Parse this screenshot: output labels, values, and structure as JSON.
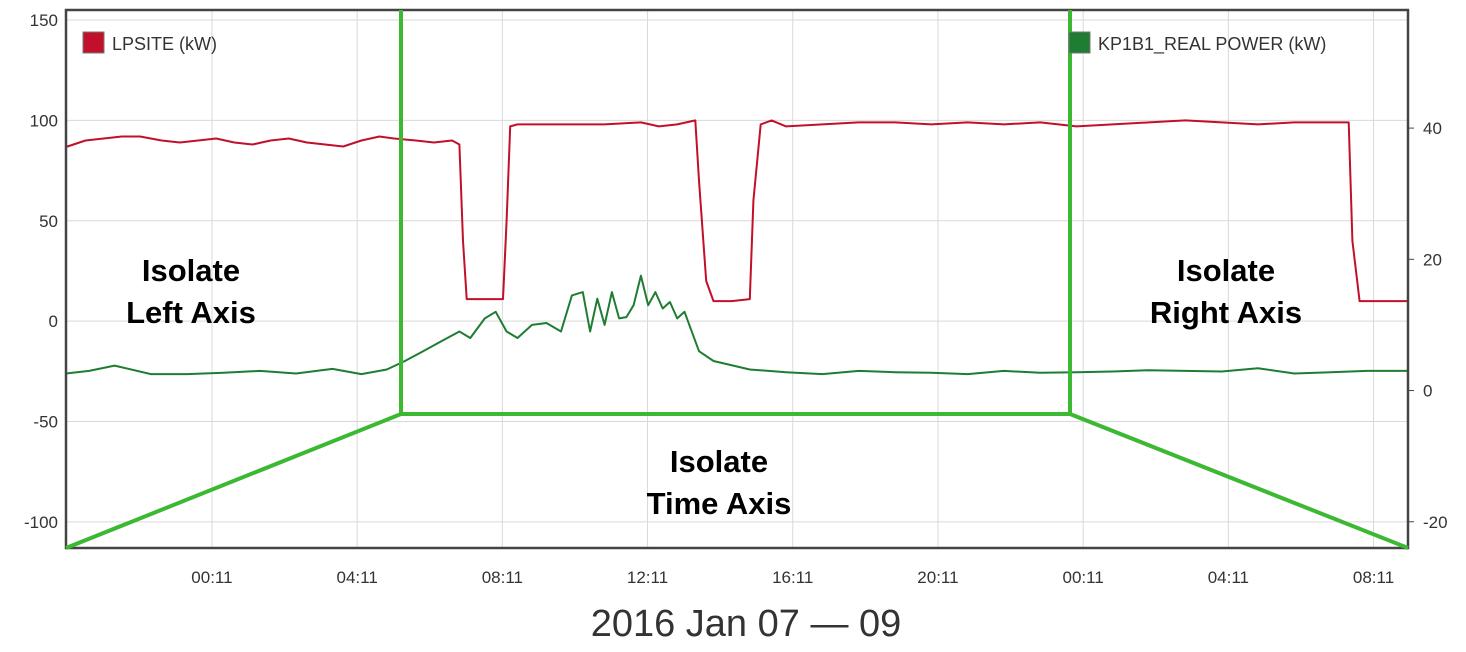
{
  "chart_data": {
    "type": "line",
    "x_axis": {
      "tick_labels": [
        "00:11",
        "04:11",
        "08:11",
        "12:11",
        "16:11",
        "20:11",
        "00:11",
        "04:11",
        "08:11"
      ],
      "date_range_label": "2016 Jan 07 — 09"
    },
    "y_left": {
      "ticks": [
        150,
        100,
        50,
        0,
        -50,
        -100
      ],
      "ylim": [
        -113,
        155
      ]
    },
    "y_right": {
      "ticks": [
        40,
        20,
        0,
        -20
      ],
      "ylim": [
        -24,
        58
      ]
    },
    "grid": true,
    "series": [
      {
        "name": "LPSITE (kW)",
        "color": "#c0102a",
        "axis": "left",
        "x_hours": [
          -4.7,
          -4.5,
          -4.2,
          -3.8,
          -3.3,
          -2.8,
          -2.3,
          -1.8,
          -1.2,
          -0.7,
          -0.2,
          0.3,
          0.8,
          1.3,
          1.8,
          2.3,
          2.8,
          3.3,
          3.8,
          4.3,
          4.8,
          5.2,
          5.8,
          6.3,
          6.8,
          7.0,
          7.1,
          7.2,
          7.5,
          8.0,
          8.2,
          8.3,
          8.4,
          8.6,
          9,
          10,
          11,
          12,
          12.5,
          13,
          13.5,
          13.6,
          13.8,
          14.0,
          14.5,
          15.0,
          15.1,
          15.3,
          15.6,
          16,
          17,
          18,
          19,
          20,
          21,
          22,
          23,
          24,
          25,
          26,
          27,
          28,
          29,
          30,
          31,
          31.5,
          31.6,
          31.8,
          32.5,
          33.2
        ],
        "values": [
          91,
          88,
          92,
          87,
          90,
          91,
          92,
          92,
          90,
          89,
          90,
          91,
          89,
          88,
          90,
          91,
          89,
          88,
          87,
          90,
          92,
          91,
          90,
          89,
          90,
          88,
          40,
          11,
          11,
          11,
          11,
          50,
          97,
          98,
          98,
          98,
          98,
          99,
          97,
          98,
          100,
          70,
          20,
          10,
          10,
          11,
          60,
          98,
          100,
          97,
          98,
          99,
          99,
          98,
          99,
          98,
          99,
          97,
          98,
          99,
          100,
          99,
          98,
          99,
          99,
          99,
          40,
          10,
          10,
          10
        ]
      },
      {
        "name": "KP1B1_REAL POWER (kW)",
        "color": "#1e7d32",
        "axis": "right",
        "x_hours": [
          -4.7,
          -4,
          -3.2,
          -2.5,
          -1.5,
          -0.5,
          0.5,
          1.5,
          2.5,
          3.5,
          4.3,
          5,
          5.5,
          6,
          6.5,
          7,
          7.3,
          7.7,
          8,
          8.3,
          8.6,
          9,
          9.4,
          9.8,
          10.1,
          10.4,
          10.6,
          10.8,
          11.0,
          11.2,
          11.4,
          11.6,
          11.8,
          12.0,
          12.2,
          12.4,
          12.6,
          12.8,
          13,
          13.2,
          13.6,
          14,
          15,
          16,
          17,
          18,
          19,
          20,
          21,
          22,
          23,
          24,
          25,
          26,
          27,
          28,
          29,
          30,
          31,
          32,
          33.2
        ],
        "values": [
          3.5,
          2.5,
          3,
          3.8,
          2.5,
          2.5,
          2.7,
          3,
          2.6,
          3.3,
          2.5,
          3.2,
          4.5,
          6,
          7.5,
          9,
          8,
          11,
          12,
          9,
          8,
          10,
          10.3,
          9,
          14.5,
          15,
          9,
          14,
          10,
          15,
          11,
          11.2,
          13,
          17.5,
          13,
          15,
          12.5,
          13.5,
          11,
          12,
          6,
          4.5,
          3.2,
          2.8,
          2.5,
          3,
          2.8,
          2.7,
          2.5,
          3.0,
          2.7,
          2.8,
          2.9,
          3.1,
          3,
          2.9,
          3.4,
          2.6,
          2.8,
          3.0,
          3.0
        ]
      }
    ],
    "annotations": [
      {
        "line1": "Isolate",
        "line2": "Left Axis"
      },
      {
        "line1": "Isolate",
        "line2": "Time Axis"
      },
      {
        "line1": "Isolate",
        "line2": "Right Axis"
      }
    ],
    "zone_color": "#3cb832"
  }
}
